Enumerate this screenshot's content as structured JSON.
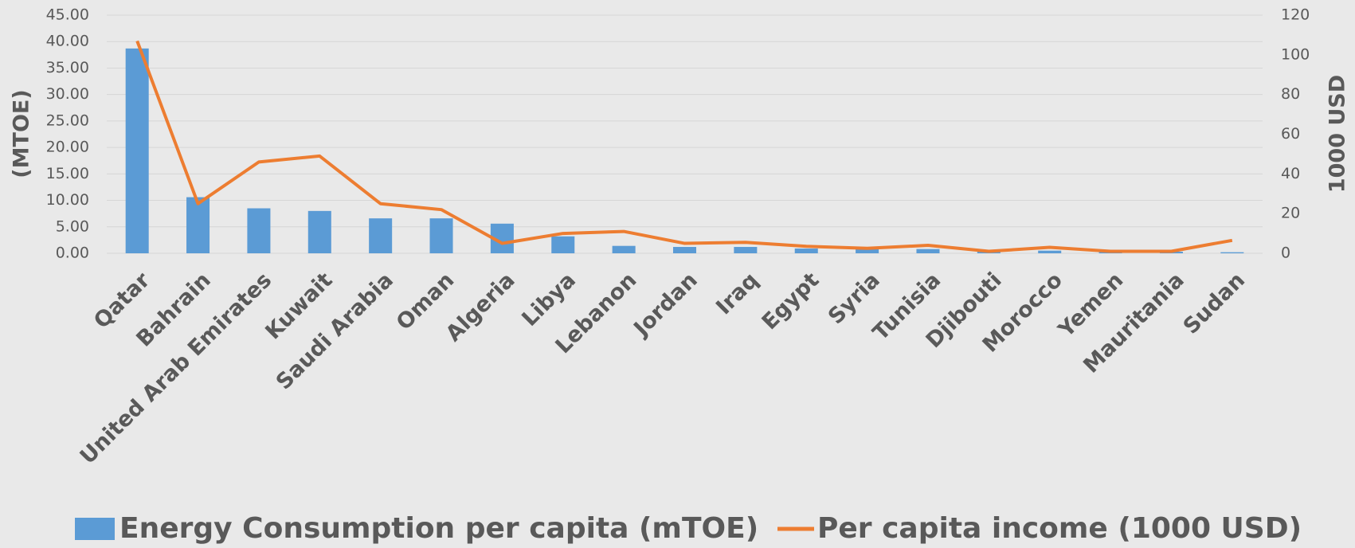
{
  "chart_data": {
    "type": "bar_line",
    "ylabel": "(MTOE)",
    "y2label": "1000 USD",
    "categories": [
      "Qatar",
      "Bahrain",
      "United Arab Emirates",
      "Kuwait",
      "Saudi Arabia",
      "Oman",
      "Algeria",
      "Libya",
      "Lebanon",
      "Jordan",
      "Iraq",
      "Egypt",
      "Syria",
      "Tunisia",
      "Djibouti",
      "Morocco",
      "Yemen",
      "Mauritania",
      "Sudan"
    ],
    "series": [
      {
        "name": "Energy Consumption per capita (mTOE)",
        "type": "bar",
        "color": "#5b9bd5",
        "values": [
          38.7,
          10.6,
          8.5,
          8.0,
          6.6,
          6.6,
          5.6,
          3.2,
          1.4,
          1.2,
          1.2,
          0.9,
          0.8,
          0.8,
          0.3,
          0.5,
          0.3,
          0.3,
          0.2
        ]
      },
      {
        "name": "Per capita income (1000 USD)",
        "type": "line",
        "axis": "y2",
        "color": "#ed7d31",
        "values": [
          107,
          25,
          46,
          49,
          25,
          22,
          5,
          10,
          11,
          5,
          5.5,
          3.5,
          2.5,
          4,
          1,
          3,
          1,
          1,
          6.5
        ]
      }
    ],
    "ylim": [
      0,
      45
    ],
    "yticks": [
      {
        "value": 0,
        "label": "0.00"
      },
      {
        "value": 5,
        "label": "5.00"
      },
      {
        "value": 10,
        "label": "10.00"
      },
      {
        "value": 15,
        "label": "15.00"
      },
      {
        "value": 20,
        "label": "20.00"
      },
      {
        "value": 25,
        "label": "25.00"
      },
      {
        "value": 30,
        "label": "30.00"
      },
      {
        "value": 35,
        "label": "35.00"
      },
      {
        "value": 40,
        "label": "40.00"
      },
      {
        "value": 45,
        "label": "45.00"
      }
    ],
    "y2lim": [
      0,
      120
    ],
    "y2ticks": [
      0,
      20,
      40,
      60,
      80,
      100,
      120
    ],
    "grid": true,
    "legend": "bottom"
  }
}
